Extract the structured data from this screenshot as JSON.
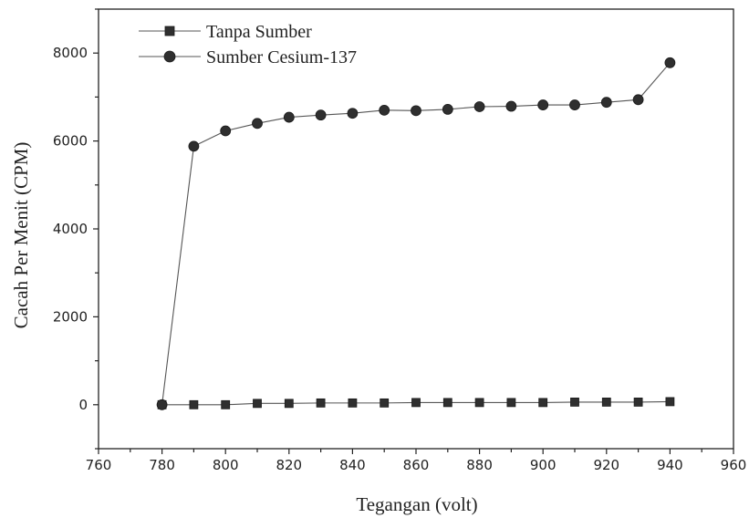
{
  "chart_data": {
    "type": "line",
    "title": "",
    "xlabel": "Tegangan (volt)",
    "ylabel": "Cacah Per Menit (CPM)",
    "xlim": [
      760,
      960
    ],
    "ylim": [
      -1000,
      9000
    ],
    "xticks": [
      760,
      780,
      800,
      820,
      840,
      860,
      880,
      900,
      920,
      940,
      960
    ],
    "yticks": [
      0,
      2000,
      4000,
      6000,
      8000
    ],
    "x": [
      780,
      790,
      800,
      810,
      820,
      830,
      840,
      850,
      860,
      870,
      880,
      890,
      900,
      910,
      920,
      930,
      940
    ],
    "series": [
      {
        "name": "Tanpa Sumber",
        "marker": "square",
        "color": "#2f2f2f",
        "values": [
          0,
          0,
          0,
          30,
          30,
          40,
          40,
          40,
          50,
          50,
          50,
          50,
          50,
          60,
          60,
          60,
          70
        ]
      },
      {
        "name": "Sumber Cesium-137",
        "marker": "circle",
        "color": "#2f2f2f",
        "values": [
          0,
          5880,
          6230,
          6400,
          6540,
          6590,
          6630,
          6700,
          6690,
          6720,
          6780,
          6790,
          6820,
          6820,
          6880,
          6940,
          7780
        ]
      }
    ],
    "legend_position": "top-left",
    "grid": false
  }
}
